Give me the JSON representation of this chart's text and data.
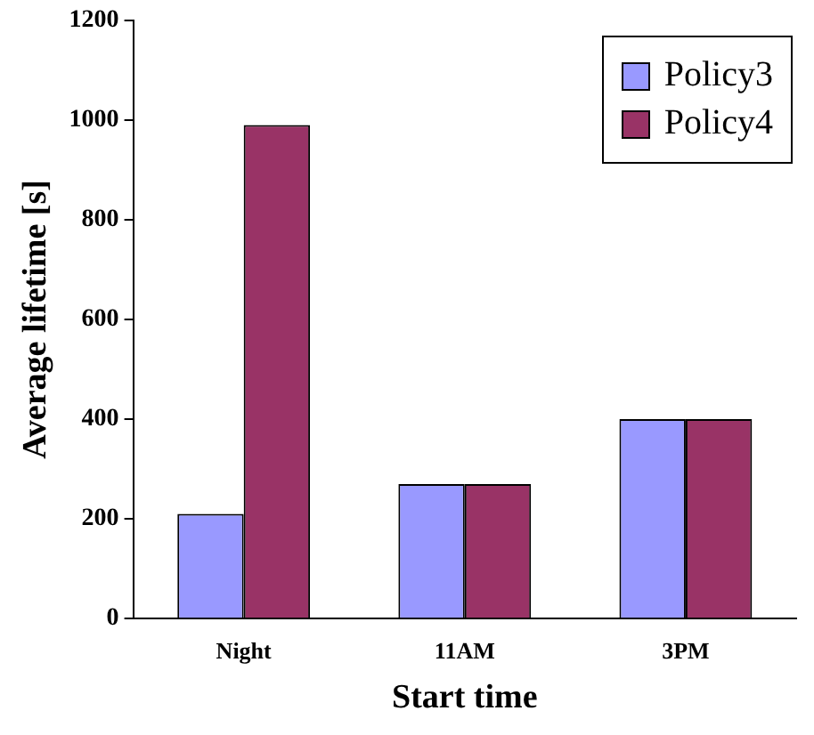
{
  "chart_data": {
    "type": "bar",
    "xlabel": "Start time",
    "ylabel": "Average lifetime [s]",
    "categories": [
      "Night",
      "11AM",
      "3PM"
    ],
    "series": [
      {
        "name": "Policy3",
        "color": "#9999ff",
        "values": [
          210,
          270,
          400
        ]
      },
      {
        "name": "Policy4",
        "color": "#993366",
        "values": [
          990,
          270,
          400
        ]
      }
    ],
    "ylim": [
      0,
      1200
    ],
    "yticks": [
      0,
      200,
      400,
      600,
      800,
      1000,
      1200
    ],
    "grid": false,
    "legend": "top right"
  }
}
